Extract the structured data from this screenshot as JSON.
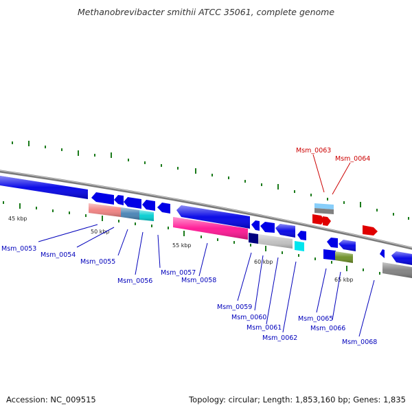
{
  "title": "Methanobrevibacter smithii ATCC 35061, complete genome",
  "footer": {
    "accession": "Accession: NC_009515",
    "topology": "Topology: circular; Length: 1,853,160 bp; Genes: 1,835"
  },
  "colors": {
    "forward_gene": "#e00000",
    "reverse_gene": "#0000e6",
    "label_forward": "#cc0000",
    "label_reverse": "#0000bb",
    "backbone": "#8c8c8c",
    "ticks": "#1a7a1a",
    "pink": "#ff1493",
    "salmon": "#f08080",
    "steel_blue": "#4682b4",
    "turquoise": "#00ced1",
    "cyan": "#00e5ee",
    "navy": "#000080",
    "light_gray": "#c0c0c0",
    "gray": "#808080",
    "olive": "#6b8e23",
    "light_blue": "#87cefa"
  },
  "kbp_labels": [
    "45 kbp",
    "50 kbp",
    "55 kbp",
    "60 kbp",
    "65 kbp"
  ],
  "gene_labels": [
    "Msm_0053",
    "Msm_0054",
    "Msm_0055",
    "Msm_0056",
    "Msm_0057",
    "Msm_0058",
    "Msm_0059",
    "Msm_0060",
    "Msm_0061",
    "Msm_0062",
    "Msm_0063",
    "Msm_0064",
    "Msm_0065",
    "Msm_0066",
    "Msm_0068"
  ]
}
